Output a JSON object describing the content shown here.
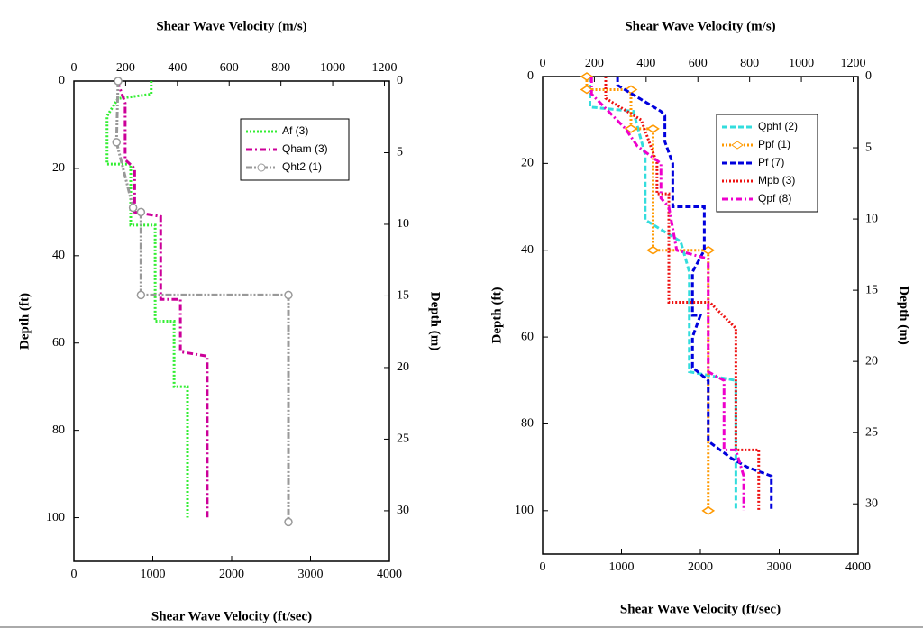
{
  "chart_data": [
    {
      "type": "line",
      "x_label": "Shear Wave Velocity (ft/sec)",
      "x2_label": "Shear Wave Velocity (m/s)",
      "y_label": "Depth (ft)",
      "y2_label": "Depth (m)",
      "xlim": [
        0,
        4000
      ],
      "xticks": [
        0,
        1000,
        2000,
        3000,
        4000
      ],
      "x2lim": [
        0,
        1219.2
      ],
      "x2ticks": [
        0,
        200,
        400,
        600,
        800,
        1000,
        1200
      ],
      "ylim": [
        0,
        110
      ],
      "yticks": [
        0,
        20,
        40,
        60,
        80,
        100
      ],
      "y2lim": [
        0,
        33.528
      ],
      "y2ticks": [
        0,
        5,
        10,
        15,
        20,
        25,
        30
      ],
      "y_inverted": true,
      "legend": "upper right",
      "series": [
        {
          "name": "Af (3)",
          "color": "#33ee33",
          "linestyle": "dotted",
          "marker": "none",
          "x": [
            980,
            980,
            560,
            420,
            420,
            720,
            720,
            1030,
            1030,
            1270,
            1270,
            1440,
            1440
          ],
          "values": [
            0,
            3,
            4,
            8,
            19,
            19,
            33,
            33,
            55,
            55,
            70,
            70,
            100
          ]
        },
        {
          "name": "Qham (3)",
          "color": "#cc0099",
          "linestyle": "dashdot",
          "marker": "none",
          "x": [
            550,
            650,
            650,
            770,
            770,
            1100,
            1100,
            1350,
            1350,
            1690,
            1690
          ],
          "values": [
            0,
            5,
            18,
            20,
            30,
            31,
            50,
            50,
            62,
            63,
            100
          ]
        },
        {
          "name": "Qht2 (1)",
          "color": "#999999",
          "linestyle": "dashdotdot",
          "marker": "circle",
          "x": [
            560,
            540,
            750,
            850,
            850,
            2720,
            2720
          ],
          "values": [
            0,
            14,
            29,
            30,
            49,
            49,
            101
          ]
        }
      ]
    },
    {
      "type": "line",
      "x_label": "Shear Wave Velocity (ft/sec)",
      "x2_label": "Shear Wave Velocity (m/s)",
      "y_label": "Depth (ft)",
      "y2_label": "Depth (m)",
      "xlim": [
        0,
        4000
      ],
      "xticks": [
        0,
        1000,
        2000,
        3000,
        4000
      ],
      "x2lim": [
        0,
        1219.2
      ],
      "x2ticks": [
        0,
        200,
        400,
        600,
        800,
        1000,
        1200
      ],
      "ylim": [
        0,
        110
      ],
      "yticks": [
        0,
        20,
        40,
        60,
        80,
        100
      ],
      "y2lim": [
        0,
        33.528
      ],
      "y2ticks": [
        0,
        5,
        10,
        15,
        20,
        25,
        30
      ],
      "y_inverted": true,
      "legend": "upper right",
      "series": [
        {
          "name": "Qphf (2)",
          "color": "#33dddd",
          "linestyle": "dashed",
          "marker": "none",
          "x": [
            600,
            600,
            1150,
            1300,
            1300,
            1750,
            1860,
            1860,
            2450,
            2450
          ],
          "values": [
            0,
            7,
            8,
            18,
            33,
            38,
            45,
            68,
            70,
            100
          ]
        },
        {
          "name": "Ppf (1)",
          "color": "#ff9900",
          "linestyle": "dotted",
          "marker": "diamond",
          "x": [
            560,
            560,
            1120,
            1120,
            1400,
            1400,
            2100,
            2100
          ],
          "values": [
            0,
            3,
            3,
            12,
            12,
            40,
            40,
            100
          ]
        },
        {
          "name": "Pf (7)",
          "color": "#0000dd",
          "linestyle": "dashed",
          "marker": "none",
          "x": [
            950,
            950,
            1500,
            1550,
            1550,
            1650,
            1650,
            2050,
            2050,
            1900,
            1900,
            2000,
            1900,
            1900,
            2100,
            2100,
            2400,
            2600,
            2900,
            2900
          ],
          "values": [
            0,
            2,
            8,
            9,
            15,
            20,
            30,
            30,
            40,
            45,
            55,
            55,
            60,
            67,
            70,
            84,
            88,
            90,
            92,
            100
          ]
        },
        {
          "name": "Mpb (3)",
          "color": "#ee1111",
          "linestyle": "dotted",
          "marker": "none",
          "x": [
            800,
            800,
            1250,
            1450,
            1450,
            1600,
            1600,
            2120,
            2450,
            2450,
            2740,
            2740
          ],
          "values": [
            0,
            5,
            10,
            20,
            27,
            27,
            52,
            52,
            58,
            86,
            86,
            100
          ]
        },
        {
          "name": "Qpf (8)",
          "color": "#ee00cc",
          "linestyle": "dashdot",
          "marker": "none",
          "x": [
            620,
            620,
            1050,
            1200,
            1500,
            1500,
            1600,
            1700,
            2100,
            2100,
            2300,
            2300,
            2450,
            2550,
            2550
          ],
          "values": [
            0,
            4,
            12,
            16,
            20,
            28,
            30,
            40,
            42,
            68,
            70,
            86,
            86,
            92,
            100
          ]
        }
      ]
    }
  ]
}
